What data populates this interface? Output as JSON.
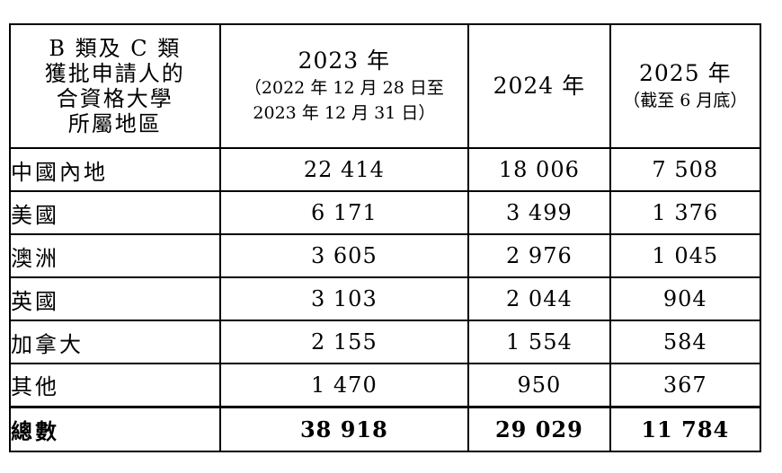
{
  "table": {
    "header": {
      "region_lines": [
        "B 類及 C 類",
        "獲批申請人的",
        "合資格大學",
        "所屬地區"
      ],
      "col_2023": {
        "year": "2023 年",
        "note_line1": "（2022 年 12 月 28 日至",
        "note_line2": "2023 年 12 月 31 日）"
      },
      "col_2024": {
        "year": "2024 年"
      },
      "col_2025": {
        "year": "2025 年",
        "note_line1": "（截至 6 月底）"
      }
    },
    "rows": [
      {
        "region": "中國內地",
        "y2023": "22 414",
        "y2024": "18 006",
        "y2025": "7 508"
      },
      {
        "region": "美國",
        "y2023": "6 171",
        "y2024": "3 499",
        "y2025": "1 376"
      },
      {
        "region": "澳洲",
        "y2023": "3 605",
        "y2024": "2 976",
        "y2025": "1 045"
      },
      {
        "region": "英國",
        "y2023": "3 103",
        "y2024": "2 044",
        "y2025": "904"
      },
      {
        "region": "加拿大",
        "y2023": "2 155",
        "y2024": "1 554",
        "y2025": "584"
      },
      {
        "region": "其他",
        "y2023": "1 470",
        "y2024": "950",
        "y2025": "367"
      }
    ],
    "total": {
      "region": "總數",
      "y2023": "38 918",
      "y2024": "29 029",
      "y2025": "11 784"
    }
  }
}
